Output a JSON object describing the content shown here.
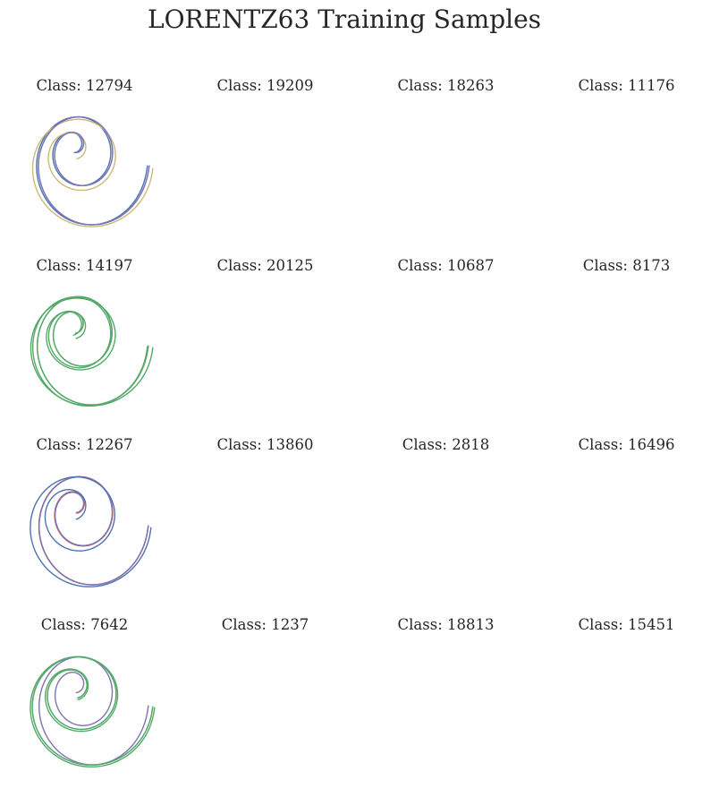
{
  "figure": {
    "title": "LORENTZ63 Training Samples"
  },
  "chart_data": [
    {
      "type": "line",
      "title": "Class: 12794",
      "color": "#4c72b0",
      "grid": false,
      "axes_visible": false
    },
    {
      "type": "line",
      "title": "Class: 19209",
      "color": "#64b5cd",
      "grid": false,
      "axes_visible": false
    },
    {
      "type": "line",
      "title": "Class: 18263",
      "color": "#ccb974",
      "grid": false,
      "axes_visible": false
    },
    {
      "type": "line",
      "title": "Class: 11176",
      "color": "#8172b2",
      "grid": false,
      "axes_visible": false
    },
    {
      "type": "line",
      "title": "Class: 14197",
      "color": "#55a868",
      "grid": false,
      "axes_visible": false
    },
    {
      "type": "line",
      "title": "Class: 20125",
      "color": "#55a868",
      "grid": false,
      "axes_visible": false
    },
    {
      "type": "line",
      "title": "Class: 10687",
      "color": "#55a868",
      "grid": false,
      "axes_visible": false
    },
    {
      "type": "line",
      "title": "Class: 8173",
      "color": "#55a868",
      "grid": false,
      "axes_visible": false
    },
    {
      "type": "line",
      "title": "Class: 12267",
      "color": "#64b5cd",
      "grid": false,
      "axes_visible": false
    },
    {
      "type": "line",
      "title": "Class: 13860",
      "color": "#c44e52",
      "grid": false,
      "axes_visible": false
    },
    {
      "type": "line",
      "title": "Class: 2818",
      "color": "#8172b2",
      "grid": false,
      "axes_visible": false
    },
    {
      "type": "line",
      "title": "Class: 16496",
      "color": "#4c72b0",
      "grid": false,
      "axes_visible": false
    },
    {
      "type": "line",
      "title": "Class: 7642",
      "color": "#8172b2",
      "grid": false,
      "axes_visible": false
    },
    {
      "type": "line",
      "title": "Class: 1237",
      "color": "#55a868",
      "grid": false,
      "axes_visible": false
    },
    {
      "type": "line",
      "title": "Class: 18813",
      "color": "#64b5cd",
      "grid": false,
      "axes_visible": false
    },
    {
      "type": "line",
      "title": "Class: 15451",
      "color": "#55a868",
      "grid": false,
      "axes_visible": false
    }
  ]
}
